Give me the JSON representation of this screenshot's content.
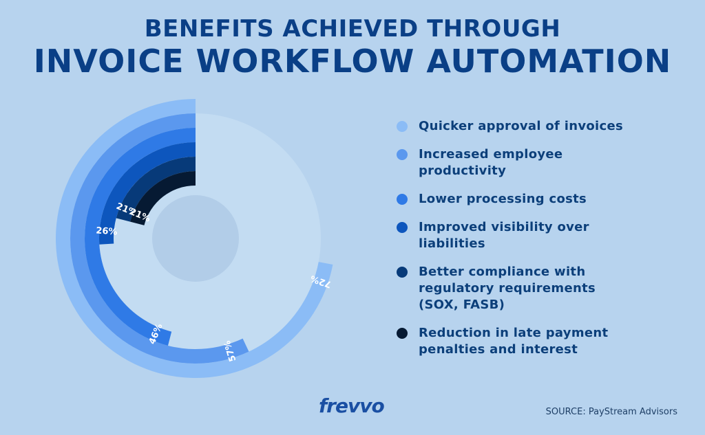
{
  "title": {
    "line1": "BENEFITS ACHIEVED THROUGH",
    "line2": "INVOICE WORKFLOW AUTOMATION"
  },
  "chart_data": {
    "type": "radial-bar",
    "start_angle_deg": 0,
    "direction": "counterclockwise",
    "series": [
      {
        "name": "Quicker approval of invoices",
        "value": 72,
        "label": "72%",
        "color": "#8bbcf6"
      },
      {
        "name": "Increased employee productivity",
        "value": 57,
        "label": "57%",
        "color": "#5b98ee"
      },
      {
        "name": "Lower processing costs",
        "value": 46,
        "label": "46%",
        "color": "#2f7ae6"
      },
      {
        "name": "Improved visibility over liabilities",
        "value": 26,
        "label": "26%",
        "color": "#0d56bd"
      },
      {
        "name": "Better compliance with regulatory requirements (SOX, FASB)",
        "value": 21,
        "label": "21%",
        "color": "#073a79"
      },
      {
        "name": "Reduction in late payment penalties and interest",
        "value": 21,
        "label": "21%",
        "color": "#061a33"
      }
    ],
    "track_color": "#c3dcf2",
    "center_color": "#b2cde8",
    "legend_position": "right"
  },
  "legend": {
    "items": [
      {
        "line1": "Quicker approval of invoices",
        "line2": "",
        "line3": "",
        "color": "#8bbcf6"
      },
      {
        "line1": "Increased employee",
        "line2": "productivity",
        "line3": "",
        "color": "#5b98ee"
      },
      {
        "line1": "Lower processing costs",
        "line2": "",
        "line3": "",
        "color": "#2f7ae6"
      },
      {
        "line1": "Improved visibility over",
        "line2": "liabilities",
        "line3": "",
        "color": "#0d56bd"
      },
      {
        "line1": "Better compliance with",
        "line2": "regulatory requirements",
        "line3": "(SOX, FASB)",
        "color": "#073a79"
      },
      {
        "line1": "Reduction in late payment",
        "line2": "penalties and interest",
        "line3": "",
        "color": "#061a33"
      }
    ]
  },
  "logo": {
    "text": "frevvo"
  },
  "source": {
    "text": "SOURCE: PayStream Advisors"
  }
}
